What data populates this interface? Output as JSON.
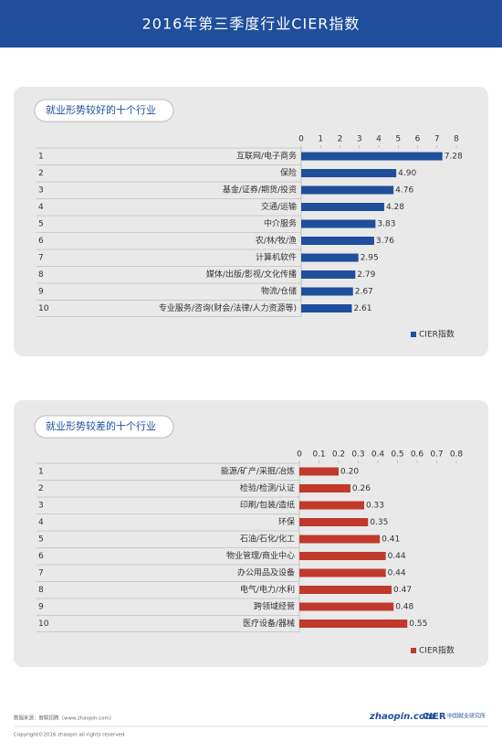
{
  "header": {
    "title": "2016年第三季度行业CIER指数"
  },
  "chart_data": [
    {
      "type": "hbar",
      "title": "就业形势较好的十个行业",
      "ranks": [
        1,
        2,
        3,
        4,
        5,
        6,
        7,
        8,
        9,
        10
      ],
      "categories": [
        "互联网/电子商务",
        "保险",
        "基金/证券/期货/投资",
        "交通/运输",
        "中介服务",
        "农/林/牧/渔",
        "计算机软件",
        "媒体/出版/影视/文化传播",
        "物流/仓储",
        "专业服务/咨询(财会/法律/人力资源等)"
      ],
      "series": [
        {
          "name": "CIER指数",
          "color": "#1f4e9c",
          "values": [
            7.28,
            4.9,
            4.76,
            4.28,
            3.83,
            3.76,
            2.95,
            2.79,
            2.67,
            2.61
          ],
          "value_labels": [
            "7.28",
            "4.90",
            "4.76",
            "4.28",
            "3.83",
            "3.76",
            "2.95",
            "2.79",
            "2.67",
            "2.61"
          ]
        }
      ],
      "xlim": [
        0,
        8
      ],
      "xticks": [
        0,
        1,
        2,
        3,
        4,
        5,
        6,
        7,
        8
      ],
      "legend": "bottom-right"
    },
    {
      "type": "hbar",
      "title": "就业形势较差的十个行业",
      "ranks": [
        1,
        2,
        3,
        4,
        5,
        6,
        7,
        8,
        9,
        10
      ],
      "categories": [
        "能源/矿产/采掘/冶炼",
        "检验/检测/认证",
        "印刷/包装/造纸",
        "环保",
        "石油/石化/化工",
        "物业管理/商业中心",
        "办公用品及设备",
        "电气/电力/水利",
        "跨领域经营",
        "医疗设备/器械"
      ],
      "series": [
        {
          "name": "CIER指数",
          "color": "#c0392b",
          "values": [
            0.2,
            0.26,
            0.33,
            0.35,
            0.41,
            0.44,
            0.44,
            0.47,
            0.48,
            0.55
          ],
          "value_labels": [
            "0.20",
            "0.26",
            "0.33",
            "0.35",
            "0.41",
            "0.44",
            "0.44",
            "0.47",
            "0.48",
            "0.55"
          ]
        }
      ],
      "xlim": [
        0,
        0.8
      ],
      "xticks": [
        0,
        0.1,
        0.2,
        0.3,
        0.4,
        0.5,
        0.6,
        0.7,
        0.8
      ],
      "legend": "bottom-right"
    }
  ],
  "footer": {
    "source": "数据来源：智联招聘（www.zhaopin.com）",
    "copyright": "Copyright©2016 zhaopin all rights reserved",
    "logo_zhaopin": "zhaopin.com",
    "logo_cier": "CIER",
    "logo_cier_name": "中国就业研究所"
  }
}
